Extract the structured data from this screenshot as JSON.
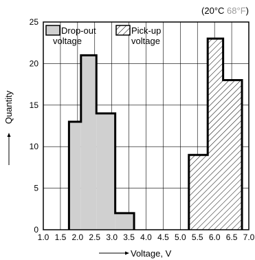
{
  "chart_data": {
    "type": "bar",
    "note_prefix": "(20°C ",
    "note_highlight": "68°F",
    "note_suffix": ")",
    "note_highlight_color": "#999999",
    "xlabel": "Voltage, V",
    "ylabel": "Quantity",
    "xlim": [
      1.0,
      7.0
    ],
    "ylim": [
      0,
      25
    ],
    "x_ticks": [
      "1.0",
      "1.5",
      "2.0",
      "2.5",
      "3.0",
      "3.5",
      "4.0",
      "4.5",
      "5.0",
      "5.5",
      "6.0",
      "6.5",
      "7.0"
    ],
    "y_ticks": [
      "0",
      "5",
      "10",
      "15",
      "20",
      "25"
    ],
    "grid": true,
    "legend_position": "top",
    "series": [
      {
        "name_line1": "Drop-out",
        "name_line2": "voltage",
        "fill": "solid",
        "color": "#d0d0d0",
        "bins": [
          {
            "x0": 1.75,
            "x1": 2.1,
            "value": 13
          },
          {
            "x0": 2.1,
            "x1": 2.55,
            "value": 21
          },
          {
            "x0": 2.55,
            "x1": 3.1,
            "value": 14
          },
          {
            "x0": 3.1,
            "x1": 3.65,
            "value": 2
          }
        ]
      },
      {
        "name_line1": "Pick-up",
        "name_line2": "voltage",
        "fill": "hatched",
        "color": "#ffffff",
        "bins": [
          {
            "x0": 5.25,
            "x1": 5.8,
            "value": 9
          },
          {
            "x0": 5.8,
            "x1": 6.25,
            "value": 23
          },
          {
            "x0": 6.25,
            "x1": 6.8,
            "value": 18
          }
        ]
      }
    ]
  }
}
